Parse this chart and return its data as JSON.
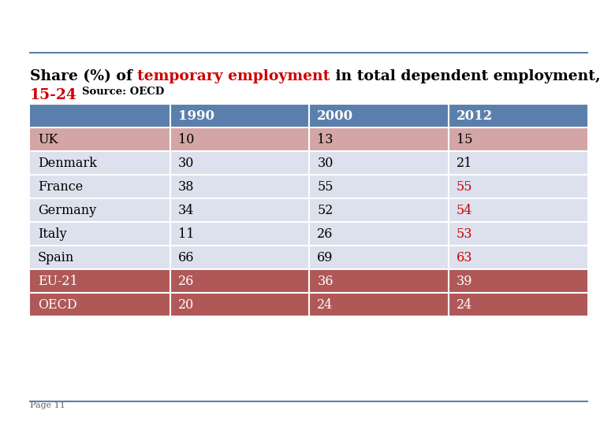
{
  "title_part1": "Share (%) of ",
  "title_highlight": "temporary employment",
  "title_part2": " in total dependent employment,",
  "title_line2_red": "15-24",
  "title_line2_black": "  Source: OECD",
  "columns": [
    "",
    "1990",
    "2000",
    "2012"
  ],
  "rows": [
    {
      "country": "UK",
      "v1990": "10",
      "v2000": "13",
      "v2012": "15",
      "row_color": "#d4a5a5",
      "v2012_color": "#000000",
      "text_color": "#000000"
    },
    {
      "country": "Denmark",
      "v1990": "30",
      "v2000": "30",
      "v2012": "21",
      "row_color": "#dce1ed",
      "v2012_color": "#000000",
      "text_color": "#000000"
    },
    {
      "country": "France",
      "v1990": "38",
      "v2000": "55",
      "v2012": "55",
      "row_color": "#dce1ed",
      "v2012_color": "#cc0000",
      "text_color": "#000000"
    },
    {
      "country": "Germany",
      "v1990": "34",
      "v2000": "52",
      "v2012": "54",
      "row_color": "#dce1ed",
      "v2012_color": "#cc0000",
      "text_color": "#000000"
    },
    {
      "country": "Italy",
      "v1990": "11",
      "v2000": "26",
      "v2012": "53",
      "row_color": "#dce1ed",
      "v2012_color": "#cc0000",
      "text_color": "#000000"
    },
    {
      "country": "Spain",
      "v1990": "66",
      "v2000": "69",
      "v2012": "63",
      "row_color": "#dce1ed",
      "v2012_color": "#cc0000",
      "text_color": "#000000"
    },
    {
      "country": "EU-21",
      "v1990": "26",
      "v2000": "36",
      "v2012": "39",
      "row_color": "#b05858",
      "v2012_color": "#ffffff",
      "text_color": "#ffffff"
    },
    {
      "country": "OECD",
      "v1990": "20",
      "v2000": "24",
      "v2012": "24",
      "row_color": "#b05858",
      "v2012_color": "#ffffff",
      "text_color": "#ffffff"
    }
  ],
  "header_color": "#5b7fac",
  "header_text_color": "#ffffff",
  "bg_color": "#ffffff",
  "red_color": "#cc0000",
  "black_color": "#000000",
  "divider_color": "#5b7fac",
  "white": "#ffffff",
  "page_label": "Page 11",
  "title_fontsize": 13.5,
  "source_fontsize": 9.5,
  "table_fontsize": 11.5,
  "header_fontsize": 12
}
